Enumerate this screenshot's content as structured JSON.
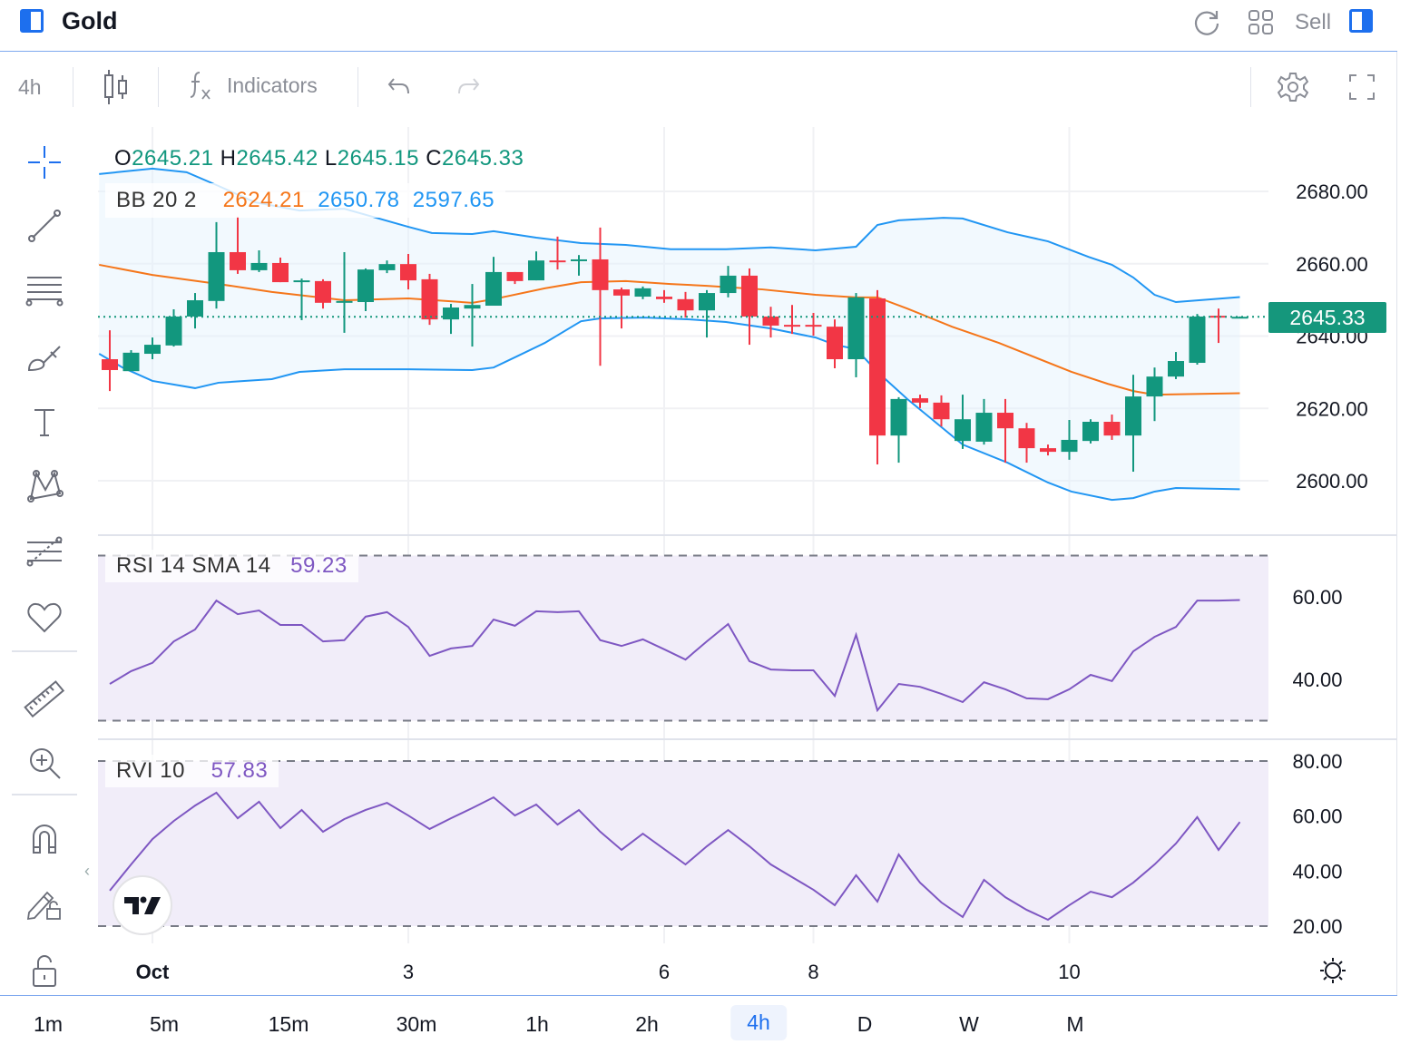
{
  "header": {
    "title": "Gold",
    "sell_label": "Sell",
    "icons": [
      "panel-left-icon",
      "refresh-icon",
      "grid-icon",
      "panel-right-icon"
    ]
  },
  "toolbar": {
    "interval": "4h",
    "indicators_label": "Indicators",
    "icons": [
      "candles-icon",
      "fx-icon",
      "undo-icon",
      "redo-icon",
      "settings-icon",
      "fullscreen-icon"
    ]
  },
  "leftbar": {
    "icons": [
      "crosshair-icon",
      "trend-line-icon",
      "horizontal-lines-icon",
      "brush-icon",
      "text-icon",
      "pattern-icon",
      "fib-icon",
      "heart-icon",
      "ruler-icon",
      "zoom-in-icon",
      "magnet-icon",
      "pencil-lock-icon",
      "lock-icon"
    ]
  },
  "legend": {
    "o_label": "O",
    "o": "2645.21",
    "h_label": "H",
    "h": "2645.42",
    "l_label": "L",
    "l": "2645.15",
    "c_label": "C",
    "c": "2645.33",
    "bb_label": "BB 20 2",
    "bb_mid": "2624.21",
    "bb_upper": "2650.78",
    "bb_lower": "2597.65"
  },
  "rsi": {
    "label": "RSI 14 SMA 14",
    "value": "59.23"
  },
  "rvi": {
    "label": "RVI 10",
    "value": "57.83"
  },
  "current_price": "2645.33",
  "time_axis": {
    "labels": [
      {
        "text": "Oct",
        "index": 2,
        "bold": true
      },
      {
        "text": "3",
        "index": 14
      },
      {
        "text": "6",
        "index": 26
      },
      {
        "text": "8",
        "index": 33
      },
      {
        "text": "10",
        "index": 45
      }
    ]
  },
  "bottom": {
    "timeframes": [
      "1m",
      "5m",
      "15m",
      "30m",
      "1h",
      "2h",
      "4h",
      "D",
      "W",
      "M"
    ],
    "active": "4h"
  },
  "colors": {
    "up": "#12977e",
    "down": "#f23645",
    "bb_upper_lower": "#2196f3",
    "bb_mid": "#f5761a",
    "indicator_line": "#7e57c2",
    "accent": "#1d6fee"
  },
  "chart_data": {
    "type": "candlestick",
    "price_axis": {
      "ticks": [
        "2600.00",
        "2620.00",
        "2640.00",
        "2660.00",
        "2680.00"
      ],
      "values": [
        2600,
        2620,
        2640,
        2660,
        2680
      ]
    },
    "candles": [
      [
        2633.6,
        2641.6,
        2624.8,
        2630.6
      ],
      [
        2630.3,
        2636.1,
        2630.3,
        2635.4
      ],
      [
        2635.1,
        2639.6,
        2633.6,
        2637.6
      ],
      [
        2637.4,
        2647.4,
        2637.1,
        2645.4
      ],
      [
        2645.4,
        2651.9,
        2642.1,
        2649.9
      ],
      [
        2649.7,
        2671.5,
        2647.6,
        2663.2
      ],
      [
        2663.2,
        2673.0,
        2657.2,
        2658.2
      ],
      [
        2658.2,
        2663.7,
        2657.7,
        2660.2
      ],
      [
        2660.2,
        2661.7,
        2654.9,
        2654.9
      ],
      [
        2654.9,
        2655.9,
        2644.4,
        2655.4
      ],
      [
        2655.2,
        2655.7,
        2647.6,
        2649.2
      ],
      [
        2649.4,
        2663.2,
        2640.9,
        2649.7
      ],
      [
        2649.4,
        2658.7,
        2646.9,
        2658.4
      ],
      [
        2658.2,
        2660.9,
        2657.4,
        2659.9
      ],
      [
        2659.9,
        2662.7,
        2652.9,
        2655.4
      ],
      [
        2655.7,
        2657.2,
        2643.1,
        2644.6
      ],
      [
        2644.6,
        2648.9,
        2640.6,
        2647.9
      ],
      [
        2647.6,
        2654.4,
        2637.1,
        2648.6
      ],
      [
        2648.4,
        2661.9,
        2648.4,
        2657.7
      ],
      [
        2657.7,
        2657.7,
        2654.4,
        2655.2
      ],
      [
        2655.4,
        2663.4,
        2655.4,
        2660.9
      ],
      [
        2660.9,
        2667.5,
        2658.4,
        2660.4
      ],
      [
        2660.7,
        2662.4,
        2656.7,
        2661.2
      ],
      [
        2661.2,
        2670.0,
        2631.8,
        2652.7
      ],
      [
        2652.9,
        2653.4,
        2642.1,
        2651.2
      ],
      [
        2650.9,
        2653.7,
        2650.2,
        2653.2
      ],
      [
        2650.9,
        2652.7,
        2649.2,
        2650.2
      ],
      [
        2650.2,
        2652.2,
        2645.1,
        2647.1
      ],
      [
        2647.1,
        2652.7,
        2639.6,
        2651.9
      ],
      [
        2651.9,
        2659.4,
        2650.7,
        2656.7
      ],
      [
        2656.7,
        2658.7,
        2637.6,
        2645.4
      ],
      [
        2645.4,
        2648.1,
        2639.6,
        2642.9
      ],
      [
        2643.1,
        2648.6,
        2640.6,
        2642.6
      ],
      [
        2643.1,
        2646.4,
        2640.1,
        2642.6
      ],
      [
        2642.6,
        2644.6,
        2631.1,
        2633.6
      ],
      [
        2633.6,
        2651.9,
        2628.6,
        2650.7
      ],
      [
        2650.4,
        2652.7,
        2604.5,
        2612.5
      ],
      [
        2612.5,
        2623.1,
        2605.0,
        2622.6
      ],
      [
        2622.8,
        2623.8,
        2620.1,
        2621.6
      ],
      [
        2621.6,
        2623.6,
        2615.0,
        2617.0
      ],
      [
        2611.0,
        2623.8,
        2608.8,
        2617.0
      ],
      [
        2610.8,
        2622.6,
        2610.0,
        2618.8
      ],
      [
        2618.8,
        2622.6,
        2605.0,
        2614.5
      ],
      [
        2614.5,
        2616.0,
        2605.0,
        2609.0
      ],
      [
        2609.0,
        2610.0,
        2607.0,
        2608.0
      ],
      [
        2608.0,
        2616.8,
        2605.8,
        2611.3
      ],
      [
        2611.0,
        2617.0,
        2610.3,
        2616.3
      ],
      [
        2616.3,
        2618.3,
        2611.3,
        2612.5
      ],
      [
        2612.5,
        2629.3,
        2602.5,
        2623.3
      ],
      [
        2623.3,
        2631.3,
        2616.5,
        2628.8
      ],
      [
        2628.8,
        2635.6,
        2628.1,
        2633.1
      ],
      [
        2632.6,
        2646.1,
        2632.1,
        2645.4
      ],
      [
        2645.6,
        2647.6,
        2638.1,
        2645.1
      ],
      [
        2645.21,
        2645.42,
        2645.15,
        2645.33
      ]
    ],
    "bb_upper": [
      [
        -0.5,
        2684.8
      ],
      [
        2,
        2686.3
      ],
      [
        3.6,
        2685.3
      ],
      [
        5.1,
        2681.5
      ],
      [
        6.8,
        2677.0
      ],
      [
        8.9,
        2674.7
      ],
      [
        11,
        2675.2
      ],
      [
        14,
        2670.2
      ],
      [
        15.1,
        2668.5
      ],
      [
        17,
        2668.2
      ],
      [
        18,
        2669.0
      ],
      [
        20,
        2667.2
      ],
      [
        22.1,
        2665.7
      ],
      [
        24.2,
        2665.2
      ],
      [
        26.3,
        2664.0
      ],
      [
        28.9,
        2664.0
      ],
      [
        31,
        2664.5
      ],
      [
        33.1,
        2663.7
      ],
      [
        35,
        2664.7
      ],
      [
        36,
        2670.7
      ],
      [
        37,
        2672.0
      ],
      [
        39.1,
        2672.7
      ],
      [
        40,
        2672.5
      ],
      [
        42.1,
        2668.7
      ],
      [
        44,
        2666.2
      ],
      [
        45.9,
        2661.9
      ],
      [
        47,
        2659.7
      ],
      [
        48,
        2656.2
      ],
      [
        49,
        2651.4
      ],
      [
        50,
        2649.4
      ],
      [
        53,
        2650.78
      ]
    ],
    "bb_mid": [
      [
        -0.5,
        2659.7
      ],
      [
        2,
        2656.9
      ],
      [
        5.1,
        2654.4
      ],
      [
        7.6,
        2652.2
      ],
      [
        11,
        2649.9
      ],
      [
        14,
        2650.4
      ],
      [
        17,
        2649.2
      ],
      [
        18,
        2650.2
      ],
      [
        20.4,
        2653.2
      ],
      [
        22.1,
        2654.9
      ],
      [
        24.2,
        2655.2
      ],
      [
        26.3,
        2654.4
      ],
      [
        28,
        2653.9
      ],
      [
        30.6,
        2652.9
      ],
      [
        33.1,
        2651.4
      ],
      [
        35,
        2650.7
      ],
      [
        36,
        2650.7
      ],
      [
        37.4,
        2647.6
      ],
      [
        39.5,
        2642.6
      ],
      [
        41.7,
        2638.1
      ],
      [
        45.1,
        2630.1
      ],
      [
        46.8,
        2626.8
      ],
      [
        48,
        2624.8
      ],
      [
        49,
        2623.8
      ],
      [
        53,
        2624.21
      ]
    ],
    "bb_lower": [
      [
        -0.5,
        2635.1
      ],
      [
        0.6,
        2631.3
      ],
      [
        2,
        2627.6
      ],
      [
        4,
        2625.6
      ],
      [
        5.1,
        2627.1
      ],
      [
        7.6,
        2628.1
      ],
      [
        8.9,
        2630.1
      ],
      [
        11,
        2630.8
      ],
      [
        14,
        2630.8
      ],
      [
        17,
        2630.6
      ],
      [
        18,
        2631.3
      ],
      [
        19.1,
        2634.4
      ],
      [
        20.4,
        2638.1
      ],
      [
        22.1,
        2644.1
      ],
      [
        23,
        2644.9
      ],
      [
        25.1,
        2645.1
      ],
      [
        27.2,
        2644.6
      ],
      [
        28.9,
        2643.9
      ],
      [
        31,
        2642.1
      ],
      [
        33.1,
        2639.6
      ],
      [
        34,
        2637.6
      ],
      [
        35,
        2636.4
      ],
      [
        36,
        2630.1
      ],
      [
        37.4,
        2622.6
      ],
      [
        40,
        2610.0
      ],
      [
        42.1,
        2605.0
      ],
      [
        44,
        2599.5
      ],
      [
        45.1,
        2597.0
      ],
      [
        47,
        2594.7
      ],
      [
        48,
        2595.2
      ],
      [
        49,
        2597.0
      ],
      [
        50,
        2598.0
      ],
      [
        53,
        2597.65
      ]
    ],
    "rsi": {
      "ticks": [
        "40.00",
        "60.00"
      ],
      "tick_values": [
        40,
        60
      ],
      "bands": [
        30,
        70
      ],
      "values": [
        38.9,
        42.0,
        44.0,
        49.2,
        52.1,
        59.1,
        55.8,
        56.7,
        53.2,
        53.2,
        49.2,
        49.5,
        55.2,
        56.3,
        52.7,
        45.7,
        47.5,
        48.1,
        54.5,
        53.0,
        56.5,
        56.3,
        56.5,
        49.5,
        48.1,
        49.7,
        47.3,
        44.8,
        49.2,
        53.4,
        44.4,
        42.4,
        42.2,
        42.2,
        36.0,
        50.8,
        32.5,
        38.9,
        38.2,
        36.5,
        34.5,
        39.3,
        37.6,
        35.4,
        35.2,
        37.6,
        41.1,
        39.6,
        46.8,
        50.3,
        52.7,
        59.1,
        59.1,
        59.23
      ]
    },
    "rvi": {
      "ticks": [
        "20.00",
        "40.00",
        "60.00",
        "80.00"
      ],
      "tick_values": [
        20,
        40,
        60,
        80
      ],
      "bands": [
        20,
        80
      ],
      "values": [
        32.9,
        42.4,
        51.6,
        58.2,
        63.8,
        68.5,
        59.2,
        65.2,
        55.6,
        62.2,
        54.3,
        58.9,
        62.2,
        64.8,
        60.2,
        55.3,
        59.2,
        62.9,
        66.8,
        60.2,
        64.2,
        56.9,
        62.2,
        54.3,
        47.7,
        53.6,
        48.0,
        42.4,
        49.0,
        54.9,
        49.0,
        42.4,
        37.8,
        33.2,
        27.6,
        38.5,
        28.9,
        46.0,
        35.8,
        28.6,
        23.3,
        36.8,
        30.5,
        25.9,
        22.3,
        27.6,
        32.5,
        30.5,
        35.8,
        42.4,
        50.0,
        59.6,
        47.7,
        57.83
      ]
    }
  }
}
